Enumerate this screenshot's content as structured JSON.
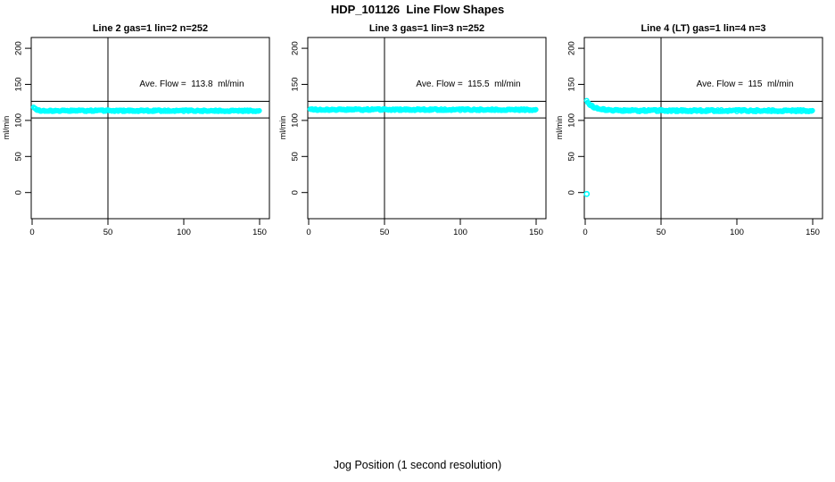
{
  "figure": {
    "title": "HDP_101126  Line Flow Shapes",
    "xlabel": "Jog Position (1 second resolution)"
  },
  "colors": {
    "points": "#00ffff",
    "axis": "#000000",
    "background": "#ffffff"
  },
  "chart_data": [
    {
      "type": "scatter",
      "title": "Line 2 gas=1 lin=2 n=252",
      "annotation": "Ave. Flow =  113.8  ml/min",
      "line": "2",
      "gas": 1,
      "lin": 2,
      "n": 252,
      "ave_flow_ml_min": 113.8,
      "ylabel": "ml/min",
      "xticks": [
        0,
        50,
        100,
        150
      ],
      "yticks": [
        0,
        50,
        100,
        150,
        200
      ],
      "xlim": [
        0,
        156
      ],
      "ylim": [
        -36,
        215
      ],
      "grid": false,
      "legend": "none",
      "vline_x": 50,
      "hlines": [
        126.5,
        103.5
      ],
      "series": [
        {
          "name": "flow",
          "marker": "open-circle",
          "color": "#00ffff",
          "x_start": 1,
          "x_end": 150,
          "x_step": 0.6,
          "anchors": [
            [
              1,
              119
            ],
            [
              2,
              116.5
            ],
            [
              3,
              115
            ],
            [
              4,
              114.2
            ],
            [
              5,
              113.8
            ],
            [
              8,
              113.5
            ],
            [
              150,
              113.4
            ]
          ],
          "jitter": 1.0,
          "outliers": []
        }
      ]
    },
    {
      "type": "scatter",
      "title": "Line 3 gas=1 lin=3 n=252",
      "annotation": "Ave. Flow =  115.5  ml/min",
      "line": "3",
      "gas": 1,
      "lin": 3,
      "n": 252,
      "ave_flow_ml_min": 115.5,
      "ylabel": "ml/min",
      "xticks": [
        0,
        50,
        100,
        150
      ],
      "yticks": [
        0,
        50,
        100,
        150,
        200
      ],
      "xlim": [
        0,
        156
      ],
      "ylim": [
        -36,
        215
      ],
      "grid": false,
      "legend": "none",
      "vline_x": 50,
      "hlines": [
        126.5,
        103.5
      ],
      "series": [
        {
          "name": "flow",
          "marker": "open-circle",
          "color": "#00ffff",
          "x_start": 1,
          "x_end": 150,
          "x_step": 0.6,
          "anchors": [
            [
              1,
              116.5
            ],
            [
              2,
              115.6
            ],
            [
              4,
              115.0
            ],
            [
              150,
              114.8
            ]
          ],
          "jitter": 1.1,
          "outliers": []
        }
      ]
    },
    {
      "type": "scatter",
      "title": "Line 4 (LT) gas=1 lin=4 n=3",
      "annotation": "Ave. Flow =  115  ml/min",
      "line": "4 (LT)",
      "gas": 1,
      "lin": 4,
      "n": 3,
      "ave_flow_ml_min": 115,
      "ylabel": "ml/min",
      "xticks": [
        0,
        50,
        100,
        150
      ],
      "yticks": [
        0,
        50,
        100,
        150,
        200
      ],
      "xlim": [
        0,
        156
      ],
      "ylim": [
        -36,
        215
      ],
      "grid": false,
      "legend": "none",
      "vline_x": 50,
      "hlines": [
        126.5,
        103.5
      ],
      "series": [
        {
          "name": "flow",
          "marker": "open-circle",
          "color": "#00ffff",
          "x_start": 1,
          "x_end": 150,
          "x_step": 0.6,
          "anchors": [
            [
              1,
              128.5
            ],
            [
              2,
              124
            ],
            [
              3,
              122
            ],
            [
              4,
              120.6
            ],
            [
              5,
              119.4
            ],
            [
              6,
              118.4
            ],
            [
              8,
              117
            ],
            [
              10,
              116.1
            ],
            [
              12,
              115.4
            ],
            [
              15,
              114.7
            ],
            [
              18,
              114.2
            ],
            [
              22,
              113.9
            ],
            [
              26,
              113.7
            ],
            [
              30,
              113.6
            ],
            [
              150,
              113.5
            ]
          ],
          "jitter": 1.3,
          "outliers": [
            [
              1,
              -2
            ]
          ]
        }
      ]
    }
  ]
}
